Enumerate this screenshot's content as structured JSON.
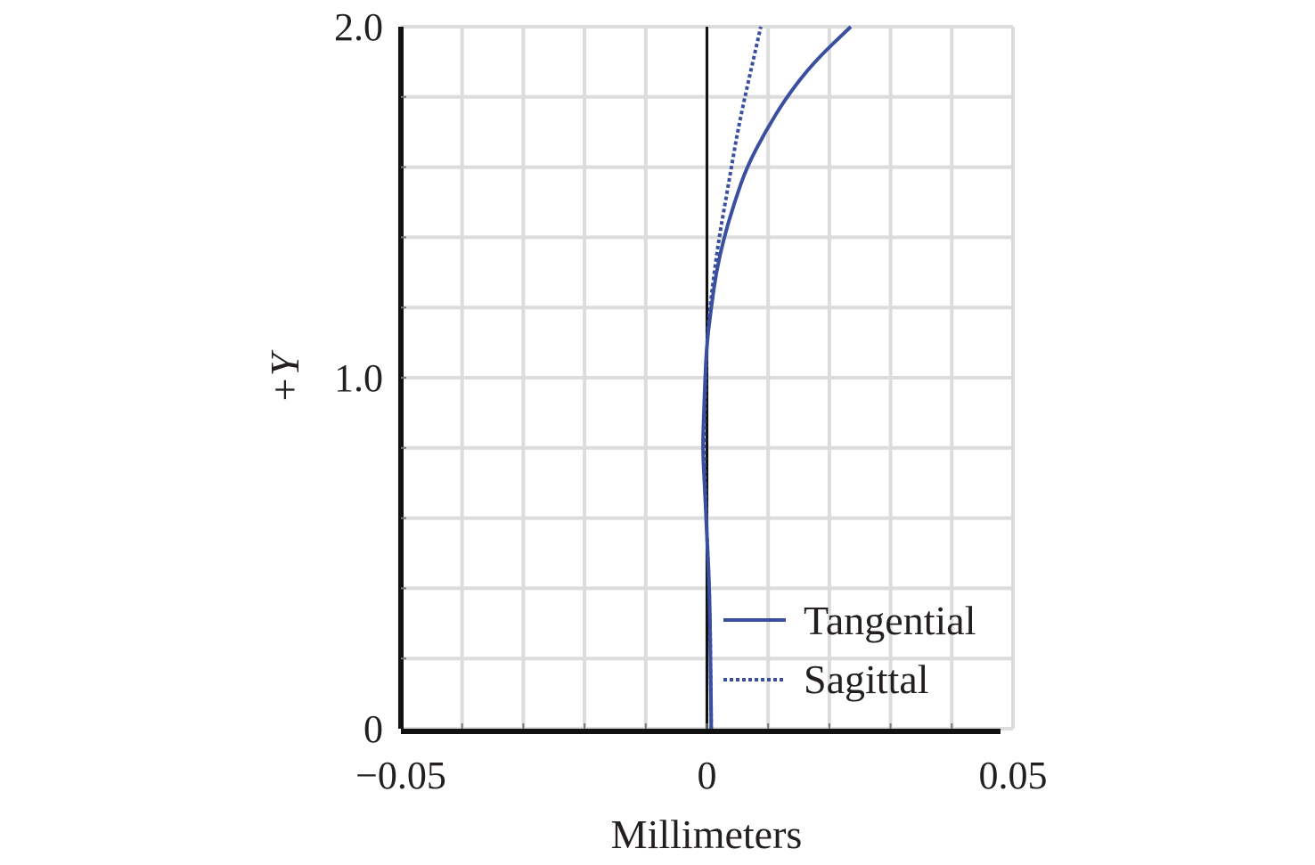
{
  "chart_data": {
    "type": "line",
    "xlabel": "Millimeters",
    "ylabel": "+Y",
    "xlim": [
      -0.05,
      0.05
    ],
    "ylim": [
      0,
      2.0
    ],
    "x_ticks": [
      -0.05,
      0,
      0.05
    ],
    "x_tick_labels": [
      "−0.05",
      "0",
      "0.05"
    ],
    "y_ticks": [
      0,
      1.0,
      2.0
    ],
    "y_tick_labels": [
      "0",
      "1.0",
      "2.0"
    ],
    "grid": true,
    "legend_position": "bottom-right",
    "colors": {
      "series": "#3a4fa0",
      "axis": "#111111",
      "grid": "#dcdcdc"
    },
    "series": [
      {
        "name": "Tangential",
        "style": "solid",
        "points": [
          [
            0.0007,
            0.0
          ],
          [
            0.0006,
            0.2
          ],
          [
            0.0004,
            0.4
          ],
          [
            0.0,
            0.55
          ],
          [
            -0.0004,
            0.7
          ],
          [
            -0.0007,
            0.8
          ],
          [
            -0.0005,
            0.9
          ],
          [
            -0.0003,
            1.0
          ],
          [
            0.0,
            1.1
          ],
          [
            0.0007,
            1.2
          ],
          [
            0.0015,
            1.3
          ],
          [
            0.0028,
            1.4
          ],
          [
            0.0045,
            1.5
          ],
          [
            0.0065,
            1.6
          ],
          [
            0.0095,
            1.7
          ],
          [
            0.013,
            1.8
          ],
          [
            0.0175,
            1.9
          ],
          [
            0.0235,
            2.0
          ]
        ]
      },
      {
        "name": "Sagittal",
        "style": "dotted",
        "points": [
          [
            0.0007,
            0.0
          ],
          [
            0.0006,
            0.2
          ],
          [
            0.0004,
            0.4
          ],
          [
            0.0,
            0.55
          ],
          [
            -0.0003,
            0.7
          ],
          [
            -0.0005,
            0.8
          ],
          [
            -0.0004,
            0.9
          ],
          [
            -0.0002,
            1.0
          ],
          [
            0.0,
            1.1
          ],
          [
            0.0005,
            1.2
          ],
          [
            0.0012,
            1.3
          ],
          [
            0.002,
            1.4
          ],
          [
            0.003,
            1.5
          ],
          [
            0.004,
            1.6
          ],
          [
            0.005,
            1.7
          ],
          [
            0.0062,
            1.8
          ],
          [
            0.0075,
            1.9
          ],
          [
            0.0088,
            2.0
          ]
        ]
      }
    ]
  }
}
